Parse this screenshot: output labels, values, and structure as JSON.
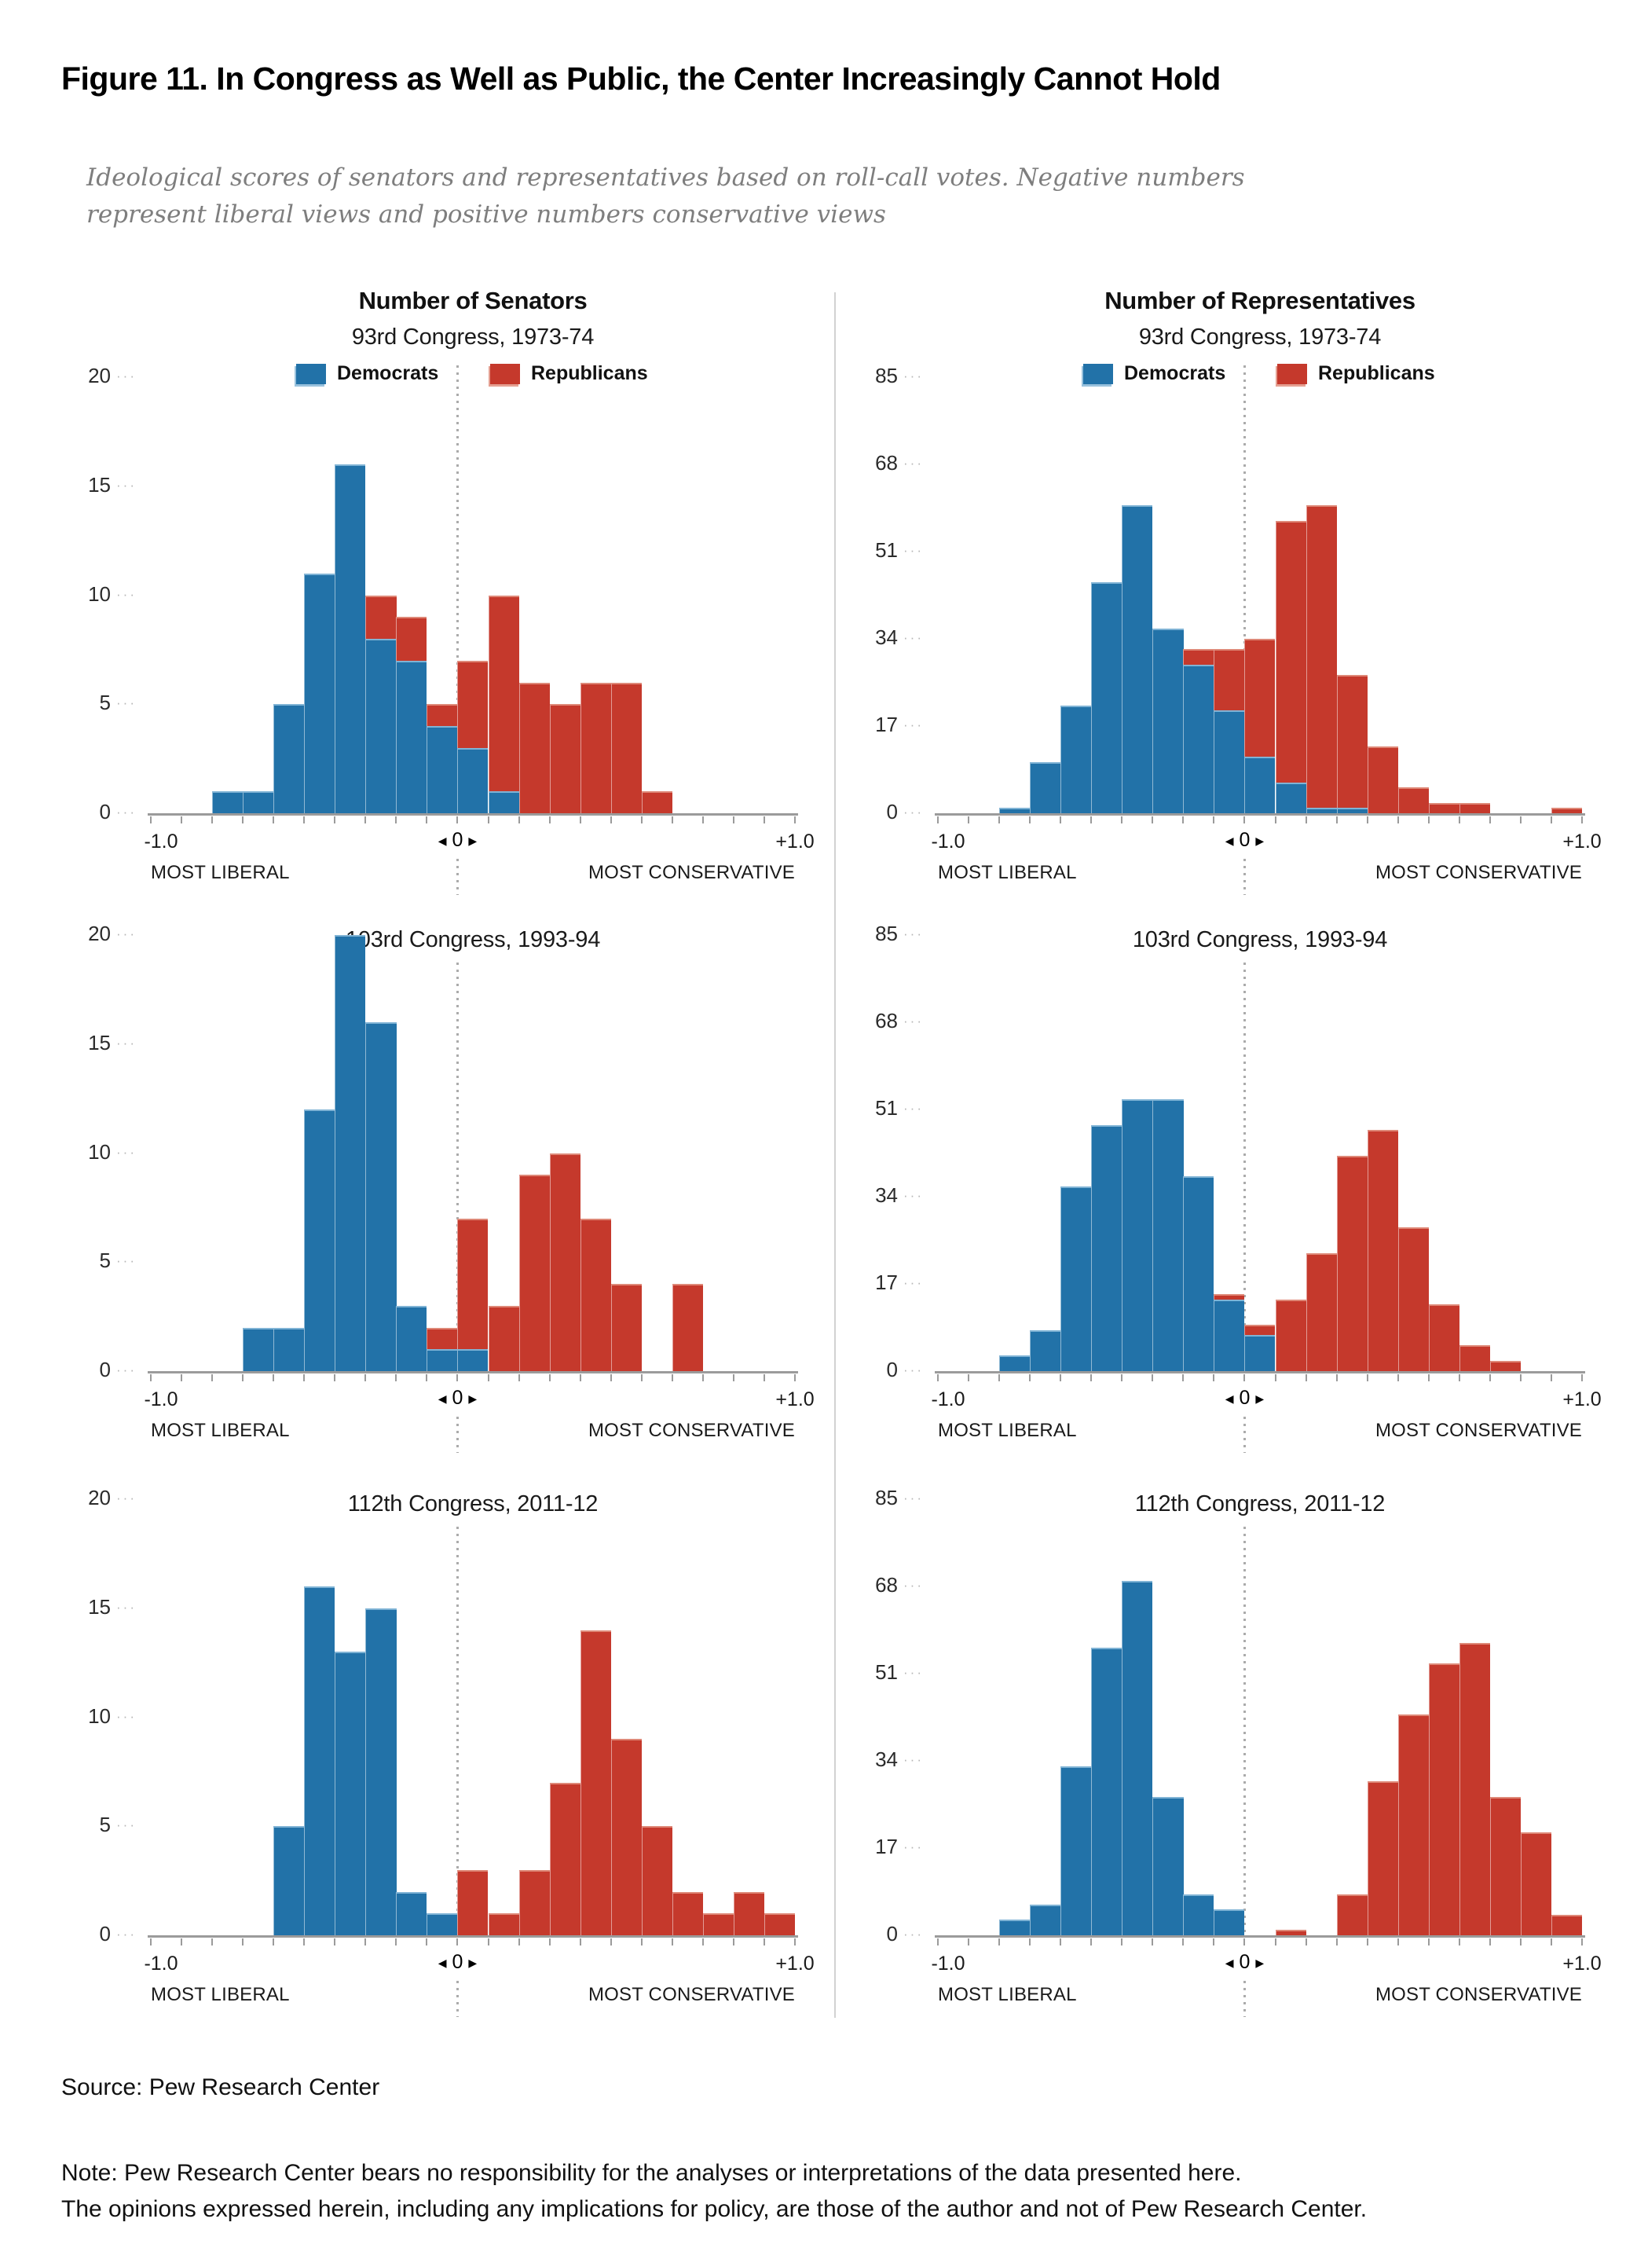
{
  "title": "Figure 11. In Congress as Well as Public, the Center Increasingly Cannot Hold",
  "subtitle_line1": "Ideological scores of senators and representatives based on roll-call votes. Negative numbers",
  "subtitle_line2": "represent liberal views and positive numbers conservative views",
  "legend": {
    "dem": "Democrats",
    "rep": "Republicans"
  },
  "colors": {
    "dem": "#2272A8",
    "rep": "#C5392C",
    "dem_cap": "#7FB3D5",
    "rep_cap": "#DE8877",
    "axis": "#9B9B9B",
    "zero_line_dots": "#ABABAB",
    "divider": "#D2D2D2"
  },
  "axis": {
    "xmin_label": "-1.0",
    "xmax_label": "+1.0",
    "zero_label": "0",
    "left_caption": "MOST LIBERAL",
    "right_caption": "MOST CONSERVATIVE"
  },
  "source": "Source: Pew Research Center",
  "note_line1": "Note: Pew Research Center bears no responsibility for the analyses or interpretations of the data presented here.",
  "note_line2": "The opinions expressed herein, including any implications for policy, are those of the author and not of Pew Research Center.",
  "chart_data": [
    {
      "id": "senate-93",
      "type": "bar",
      "col": 0,
      "row": 0,
      "col_title": "Number of Senators",
      "congress": "93rd Congress, 1973-74",
      "xlim": [
        -1.0,
        1.0
      ],
      "ylim": [
        0,
        20
      ],
      "yticks": [
        0,
        5,
        10,
        15,
        20
      ],
      "series_names": [
        "Democrats",
        "Republicans"
      ],
      "bins": [
        {
          "x": -0.81,
          "dem": 1,
          "rep": 0
        },
        {
          "x": -0.714,
          "dem": 1,
          "rep": 0
        },
        {
          "x": -0.619,
          "dem": 5,
          "rep": 0
        },
        {
          "x": -0.524,
          "dem": 11,
          "rep": 0
        },
        {
          "x": -0.429,
          "dem": 16,
          "rep": 0
        },
        {
          "x": -0.333,
          "dem": 8,
          "rep": 2
        },
        {
          "x": -0.238,
          "dem": 7,
          "rep": 2
        },
        {
          "x": -0.143,
          "dem": 4,
          "rep": 1
        },
        {
          "x": -0.048,
          "dem": 3,
          "rep": 4
        },
        {
          "x": 0.048,
          "dem": 1,
          "rep": 9
        },
        {
          "x": 0.143,
          "dem": 0,
          "rep": 6
        },
        {
          "x": 0.238,
          "dem": 0,
          "rep": 5
        },
        {
          "x": 0.333,
          "dem": 0,
          "rep": 6
        },
        {
          "x": 0.429,
          "dem": 0,
          "rep": 6
        },
        {
          "x": 0.524,
          "dem": 0,
          "rep": 1
        }
      ]
    },
    {
      "id": "senate-103",
      "type": "bar",
      "col": 0,
      "row": 1,
      "col_title": null,
      "congress": "103rd Congress, 1993-94",
      "xlim": [
        -1.0,
        1.0
      ],
      "ylim": [
        0,
        20
      ],
      "yticks": [
        0,
        5,
        10,
        15,
        20
      ],
      "series_names": [
        "Democrats",
        "Republicans"
      ],
      "bins": [
        {
          "x": -0.714,
          "dem": 2,
          "rep": 0
        },
        {
          "x": -0.619,
          "dem": 2,
          "rep": 0
        },
        {
          "x": -0.524,
          "dem": 12,
          "rep": 0
        },
        {
          "x": -0.429,
          "dem": 20,
          "rep": 0
        },
        {
          "x": -0.333,
          "dem": 16,
          "rep": 0
        },
        {
          "x": -0.238,
          "dem": 3,
          "rep": 0
        },
        {
          "x": -0.143,
          "dem": 1,
          "rep": 1
        },
        {
          "x": -0.048,
          "dem": 1,
          "rep": 6
        },
        {
          "x": 0.048,
          "dem": 0,
          "rep": 3
        },
        {
          "x": 0.143,
          "dem": 0,
          "rep": 9
        },
        {
          "x": 0.238,
          "dem": 0,
          "rep": 10
        },
        {
          "x": 0.333,
          "dem": 0,
          "rep": 7
        },
        {
          "x": 0.429,
          "dem": 0,
          "rep": 4
        },
        {
          "x": 0.619,
          "dem": 0,
          "rep": 4
        }
      ]
    },
    {
      "id": "senate-112",
      "type": "bar",
      "col": 0,
      "row": 2,
      "col_title": null,
      "congress": "112th Congress, 2011-12",
      "xlim": [
        -1.0,
        1.0
      ],
      "ylim": [
        0,
        20
      ],
      "yticks": [
        0,
        5,
        10,
        15,
        20
      ],
      "series_names": [
        "Democrats",
        "Republicans"
      ],
      "bins": [
        {
          "x": -0.619,
          "dem": 5,
          "rep": 0
        },
        {
          "x": -0.524,
          "dem": 16,
          "rep": 0
        },
        {
          "x": -0.429,
          "dem": 13,
          "rep": 0
        },
        {
          "x": -0.333,
          "dem": 15,
          "rep": 0
        },
        {
          "x": -0.238,
          "dem": 2,
          "rep": 0
        },
        {
          "x": -0.143,
          "dem": 1,
          "rep": 0
        },
        {
          "x": -0.048,
          "dem": 0,
          "rep": 3
        },
        {
          "x": 0.048,
          "dem": 0,
          "rep": 1
        },
        {
          "x": 0.143,
          "dem": 0,
          "rep": 3
        },
        {
          "x": 0.238,
          "dem": 0,
          "rep": 7
        },
        {
          "x": 0.333,
          "dem": 0,
          "rep": 14
        },
        {
          "x": 0.429,
          "dem": 0,
          "rep": 9
        },
        {
          "x": 0.524,
          "dem": 0,
          "rep": 5
        },
        {
          "x": 0.619,
          "dem": 0,
          "rep": 2
        },
        {
          "x": 0.714,
          "dem": 0,
          "rep": 1
        },
        {
          "x": 0.81,
          "dem": 0,
          "rep": 2
        },
        {
          "x": 0.905,
          "dem": 0,
          "rep": 1
        }
      ]
    },
    {
      "id": "house-93",
      "type": "bar",
      "col": 1,
      "row": 0,
      "col_title": "Number of Representatives",
      "congress": "93rd Congress, 1973-74",
      "xlim": [
        -1.0,
        1.0
      ],
      "ylim": [
        0,
        85
      ],
      "yticks": [
        0,
        17,
        34,
        51,
        68,
        85
      ],
      "series_names": [
        "Democrats",
        "Republicans"
      ],
      "bins": [
        {
          "x": -0.81,
          "dem": 1,
          "rep": 0
        },
        {
          "x": -0.714,
          "dem": 10,
          "rep": 0
        },
        {
          "x": -0.619,
          "dem": 21,
          "rep": 0
        },
        {
          "x": -0.524,
          "dem": 45,
          "rep": 0
        },
        {
          "x": -0.429,
          "dem": 60,
          "rep": 0
        },
        {
          "x": -0.333,
          "dem": 36,
          "rep": 0
        },
        {
          "x": -0.238,
          "dem": 29,
          "rep": 3
        },
        {
          "x": -0.143,
          "dem": 20,
          "rep": 12
        },
        {
          "x": -0.048,
          "dem": 11,
          "rep": 23
        },
        {
          "x": 0.048,
          "dem": 6,
          "rep": 51
        },
        {
          "x": 0.143,
          "dem": 1,
          "rep": 59
        },
        {
          "x": 0.238,
          "dem": 1,
          "rep": 26
        },
        {
          "x": 0.333,
          "dem": 0,
          "rep": 13
        },
        {
          "x": 0.429,
          "dem": 0,
          "rep": 5
        },
        {
          "x": 0.524,
          "dem": 0,
          "rep": 2
        },
        {
          "x": 0.619,
          "dem": 0,
          "rep": 2
        },
        {
          "x": 0.905,
          "dem": 0,
          "rep": 1
        }
      ]
    },
    {
      "id": "house-103",
      "type": "bar",
      "col": 1,
      "row": 1,
      "col_title": null,
      "congress": "103rd Congress, 1993-94",
      "xlim": [
        -1.0,
        1.0
      ],
      "ylim": [
        0,
        85
      ],
      "yticks": [
        0,
        17,
        34,
        51,
        68,
        85
      ],
      "series_names": [
        "Democrats",
        "Republicans"
      ],
      "bins": [
        {
          "x": -0.81,
          "dem": 3,
          "rep": 0
        },
        {
          "x": -0.714,
          "dem": 8,
          "rep": 0
        },
        {
          "x": -0.619,
          "dem": 36,
          "rep": 0
        },
        {
          "x": -0.524,
          "dem": 48,
          "rep": 0
        },
        {
          "x": -0.429,
          "dem": 53,
          "rep": 0
        },
        {
          "x": -0.333,
          "dem": 53,
          "rep": 0
        },
        {
          "x": -0.238,
          "dem": 38,
          "rep": 0
        },
        {
          "x": -0.143,
          "dem": 14,
          "rep": 1
        },
        {
          "x": -0.048,
          "dem": 7,
          "rep": 2
        },
        {
          "x": 0.048,
          "dem": 0,
          "rep": 14
        },
        {
          "x": 0.143,
          "dem": 0,
          "rep": 23
        },
        {
          "x": 0.238,
          "dem": 0,
          "rep": 42
        },
        {
          "x": 0.333,
          "dem": 0,
          "rep": 47
        },
        {
          "x": 0.429,
          "dem": 0,
          "rep": 28
        },
        {
          "x": 0.524,
          "dem": 0,
          "rep": 13
        },
        {
          "x": 0.619,
          "dem": 0,
          "rep": 5
        },
        {
          "x": 0.714,
          "dem": 0,
          "rep": 2
        }
      ]
    },
    {
      "id": "house-112",
      "type": "bar",
      "col": 1,
      "row": 2,
      "col_title": null,
      "congress": "112th Congress, 2011-12",
      "xlim": [
        -1.0,
        1.0
      ],
      "ylim": [
        0,
        85
      ],
      "yticks": [
        0,
        17,
        34,
        51,
        68,
        85
      ],
      "series_names": [
        "Democrats",
        "Republicans"
      ],
      "bins": [
        {
          "x": -0.81,
          "dem": 3,
          "rep": 0
        },
        {
          "x": -0.714,
          "dem": 6,
          "rep": 0
        },
        {
          "x": -0.619,
          "dem": 33,
          "rep": 0
        },
        {
          "x": -0.524,
          "dem": 56,
          "rep": 0
        },
        {
          "x": -0.429,
          "dem": 69,
          "rep": 0
        },
        {
          "x": -0.333,
          "dem": 27,
          "rep": 0
        },
        {
          "x": -0.238,
          "dem": 8,
          "rep": 0
        },
        {
          "x": -0.143,
          "dem": 5,
          "rep": 0
        },
        {
          "x": 0.048,
          "dem": 0,
          "rep": 1
        },
        {
          "x": 0.238,
          "dem": 0,
          "rep": 8
        },
        {
          "x": 0.333,
          "dem": 0,
          "rep": 30
        },
        {
          "x": 0.429,
          "dem": 0,
          "rep": 43
        },
        {
          "x": 0.524,
          "dem": 0,
          "rep": 53
        },
        {
          "x": 0.619,
          "dem": 0,
          "rep": 57
        },
        {
          "x": 0.714,
          "dem": 0,
          "rep": 27
        },
        {
          "x": 0.81,
          "dem": 0,
          "rep": 20
        },
        {
          "x": 0.905,
          "dem": 0,
          "rep": 4
        }
      ]
    }
  ]
}
